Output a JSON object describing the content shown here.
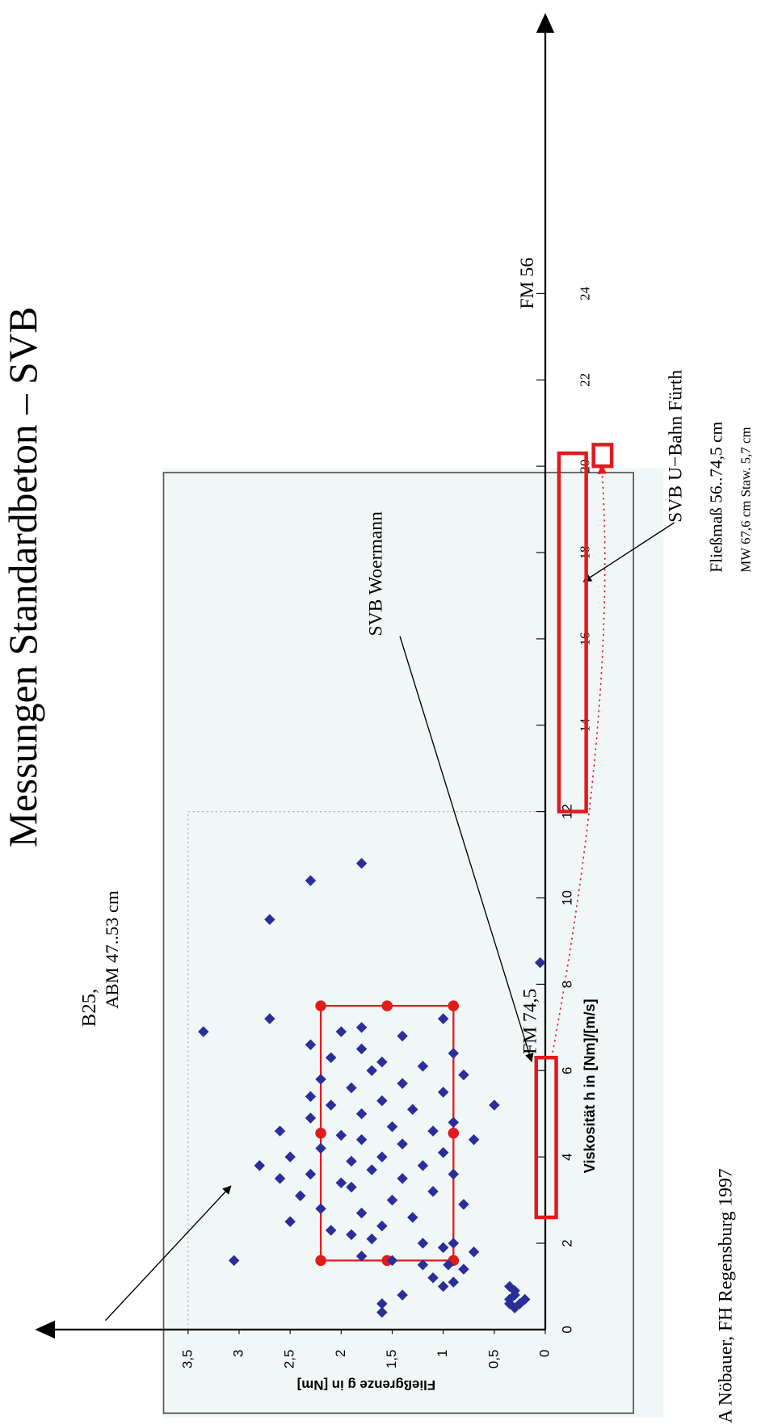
{
  "chart_data": {
    "type": "scatter",
    "title": "Messungen Standardbeton – SVB",
    "x_label": "Viskosität h in [Nm]/[m/s]",
    "y_label": "Fließgrenze g in [Nm]",
    "footer": "A Nöbauer, FH Regensburg 1997",
    "color": "#2b2e9a",
    "range_color": "#e3191c",
    "x": [
      0.5,
      0.6,
      0.7,
      0.8,
      0.7,
      0.9,
      1.0,
      0.6,
      0.4,
      0.6,
      0.8,
      1.0,
      1.1,
      1.2,
      1.4,
      1.5,
      1.6,
      1.7,
      1.5,
      1.8,
      1.9,
      2.0,
      2.1,
      2.2,
      2.3,
      2.0,
      2.4,
      2.5,
      2.6,
      2.7,
      2.8,
      2.9,
      3.0,
      3.1,
      3.2,
      3.3,
      3.4,
      3.5,
      3.5,
      3.6,
      3.6,
      3.7,
      3.8,
      3.8,
      3.9,
      4.0,
      4.0,
      4.1,
      4.2,
      4.3,
      4.4,
      4.4,
      4.5,
      4.6,
      4.6,
      4.7,
      4.8,
      4.9,
      5.0,
      5.1,
      5.2,
      5.2,
      5.3,
      5.4,
      5.5,
      5.6,
      5.7,
      5.8,
      5.9,
      6.0,
      6.1,
      6.2,
      6.3,
      6.4,
      6.5,
      6.6,
      6.8,
      7.0,
      7.2,
      6.9,
      6.9,
      7.2,
      9.5,
      10.4,
      10.8,
      8.5,
      1.6
    ],
    "values": [
      0.3,
      0.25,
      0.35,
      0.3,
      0.2,
      0.3,
      0.35,
      0.35,
      1.6,
      1.6,
      1.4,
      1.0,
      0.9,
      1.1,
      0.8,
      1.2,
      1.5,
      1.8,
      0.95,
      0.7,
      1.0,
      1.2,
      1.7,
      1.9,
      2.1,
      0.9,
      1.6,
      2.5,
      1.3,
      1.8,
      2.2,
      0.8,
      1.5,
      2.4,
      1.1,
      1.9,
      2.0,
      2.6,
      1.4,
      0.9,
      2.3,
      1.7,
      2.8,
      1.2,
      1.9,
      2.5,
      1.6,
      1.0,
      2.2,
      1.4,
      1.8,
      0.7,
      2.0,
      1.1,
      2.6,
      1.5,
      0.9,
      2.3,
      1.8,
      1.3,
      2.1,
      0.5,
      1.6,
      2.3,
      1.0,
      1.9,
      1.4,
      2.2,
      0.8,
      1.7,
      1.2,
      1.6,
      2.1,
      0.9,
      1.8,
      2.3,
      1.4,
      1.8,
      1.0,
      2.0,
      3.35,
      2.7,
      2.7,
      2.3,
      1.8,
      0.05,
      3.05
    ],
    "xlim": [
      0,
      30.5
    ],
    "ylim": [
      0,
      5
    ],
    "xticks": [
      0,
      2,
      4,
      6,
      8,
      10,
      12,
      14,
      16,
      18,
      20,
      22,
      24
    ],
    "yticks": [
      0,
      {
        "value": 0.5,
        "label": "0,5"
      },
      1,
      {
        "value": 1.5,
        "label": "1,5"
      },
      2,
      {
        "value": 2.5,
        "label": "2,5"
      },
      3,
      {
        "value": 3.5,
        "label": "3,5"
      }
    ],
    "ranges": [
      {
        "x": [
          1.6,
          7.5
        ],
        "y": [
          0.9,
          2.2
        ]
      },
      {
        "x": [
          2.6,
          6.3
        ]
      },
      {
        "x": [
          12,
          20.3
        ]
      },
      {
        "x": [
          20,
          20.5
        ]
      }
    ],
    "annotations": [
      "B25,",
      "ABM 47..53 cm",
      "SVB Woermann",
      "FM 74,5",
      "FM 56",
      "SVB U−Bahn Fürth",
      "Fließmaß 56..74,5 cm",
      "MW 67,6 cm Staw. 5,7 cm"
    ]
  }
}
